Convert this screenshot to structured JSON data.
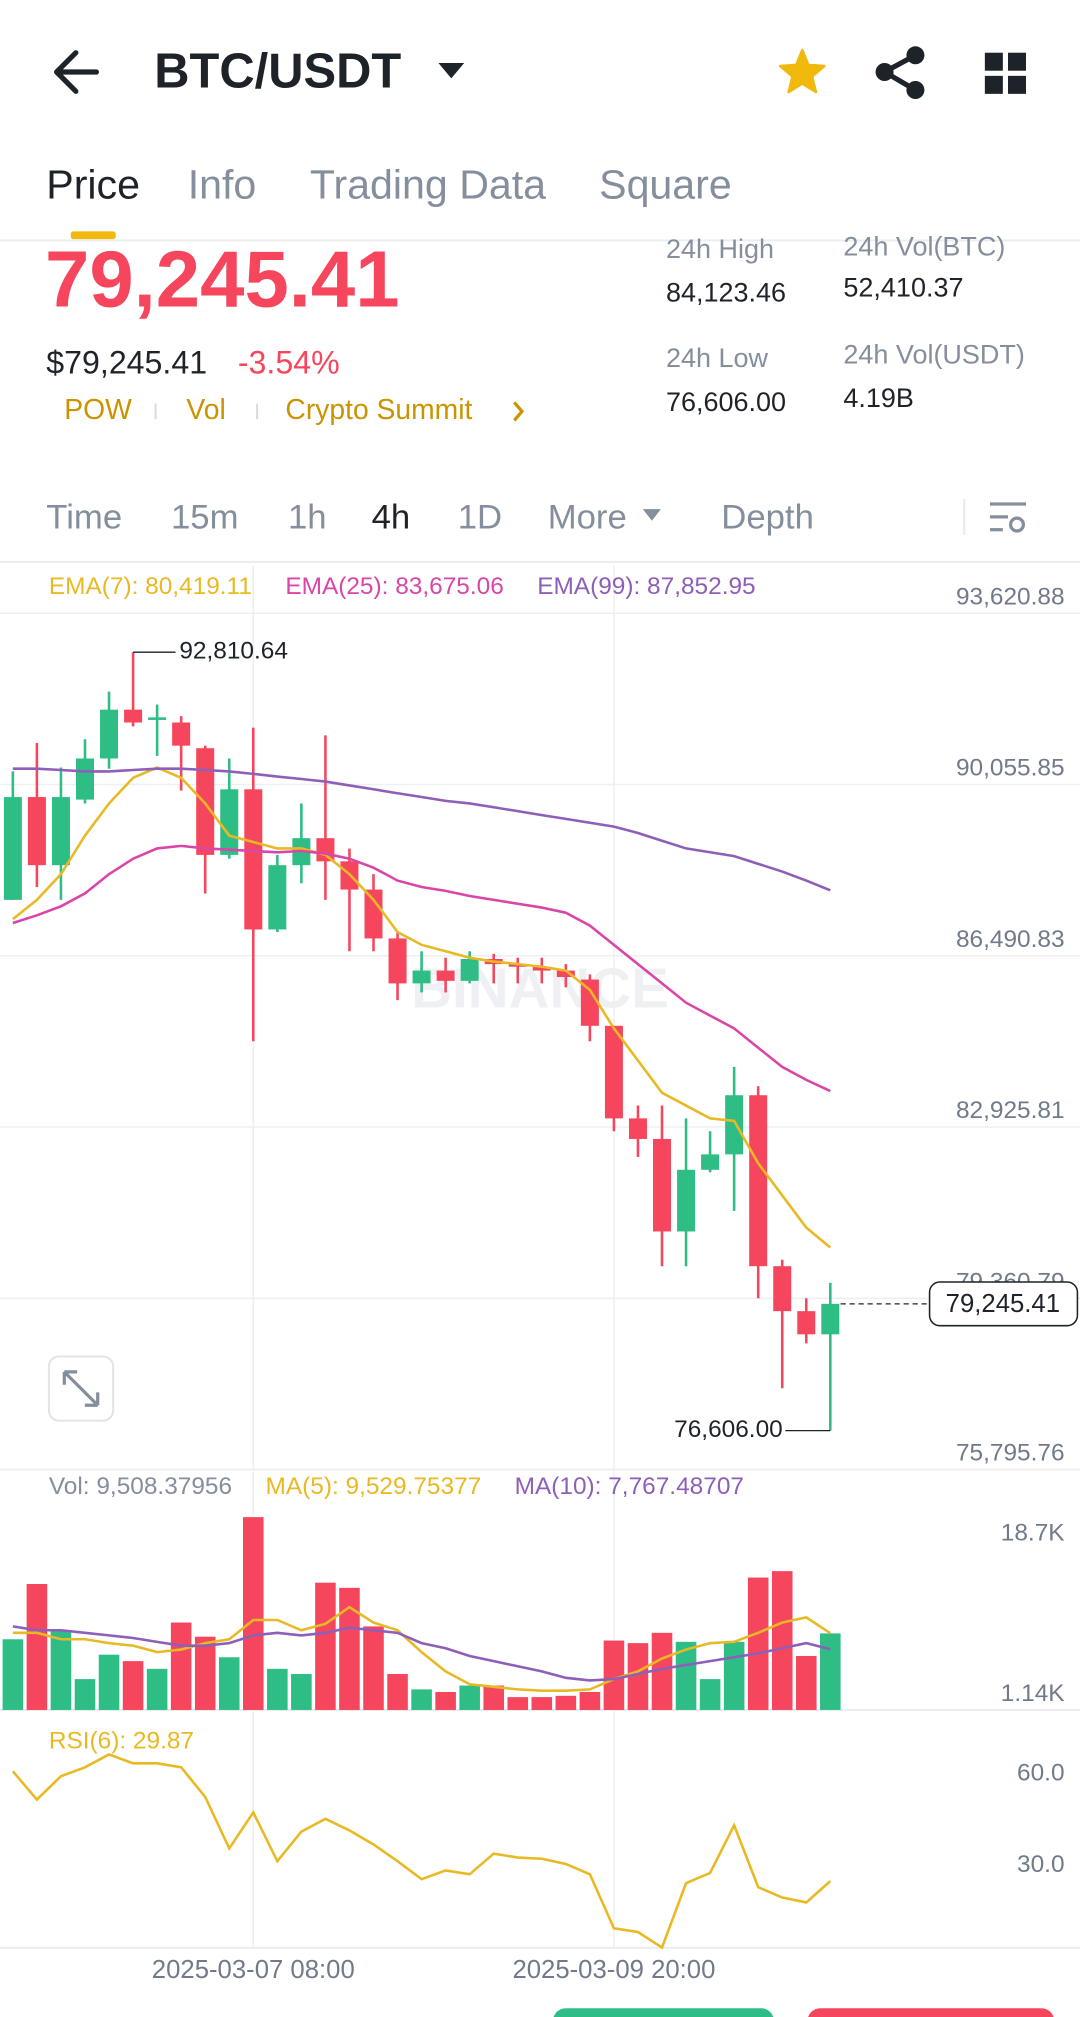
{
  "header": {
    "pair": "BTC/USDT"
  },
  "tabs": [
    "Price",
    "Info",
    "Trading Data",
    "Square"
  ],
  "price": {
    "last": "79,245.41",
    "usd": "$79,245.41",
    "change": "-3.54%",
    "tags": [
      "POW",
      "Vol",
      "Crypto Summit"
    ]
  },
  "stats": [
    {
      "label": "24h High",
      "value": "84,123.46"
    },
    {
      "label": "24h Vol(BTC)",
      "value": "52,410.37"
    },
    {
      "label": "24h Low",
      "value": "76,606.00"
    },
    {
      "label": "24h Vol(USDT)",
      "value": "4.19B"
    }
  ],
  "intervals": [
    "Time",
    "15m",
    "1h",
    "4h",
    "1D",
    "More",
    "Depth"
  ],
  "chart_data": [
    {
      "type": "candlestick",
      "watermark": "BINANCE",
      "up_color": "#2ebd85",
      "down_color": "#f6465d",
      "grid": true,
      "categories": [
        null,
        null,
        null,
        null,
        null,
        null,
        null,
        null,
        null,
        null,
        "2025-03-07 08:00",
        null,
        null,
        null,
        null,
        null,
        null,
        null,
        null,
        null,
        null,
        null,
        null,
        null,
        null,
        "2025-03-09 20:00",
        null,
        null,
        null,
        null,
        null,
        null,
        null,
        null,
        null
      ],
      "open": [
        87655,
        89795,
        88377,
        89742,
        90598,
        91614,
        91400,
        91347,
        90812,
        88591,
        89956,
        87039,
        88377,
        88939,
        88457,
        87869,
        86852,
        85916,
        86183,
        85969,
        86424,
        86317,
        86263,
        86183,
        85996,
        85033,
        83106,
        82678,
        80752,
        82036,
        82357,
        83588,
        80029,
        79093,
        78611
      ],
      "high": [
        90330,
        90919,
        90410,
        90999,
        91989,
        92810.64,
        91721,
        91481,
        90865,
        90598,
        91240,
        88591,
        89661,
        91079,
        88725,
        88190,
        86986,
        86584,
        86451,
        86584,
        86531,
        86451,
        86451,
        86317,
        86103,
        85033,
        83374,
        83374,
        83106,
        82839,
        84177,
        83775,
        80163,
        79361,
        79682
      ],
      "low": [
        87655,
        87922,
        87655,
        89661,
        90384,
        91267,
        90651,
        89929,
        87788,
        88511,
        84712,
        86986,
        88002,
        87655,
        86584,
        86584,
        85568,
        85728,
        85728,
        85916,
        85916,
        85916,
        85916,
        85835,
        84712,
        82839,
        82304,
        80029,
        80029,
        81983,
        81180,
        79361,
        77488,
        78424,
        76606.0
      ],
      "close": [
        89795,
        88377,
        89795,
        90598,
        91614,
        91347,
        91454,
        90865,
        88591,
        89956,
        87039,
        88377,
        88939,
        88457,
        87869,
        86852,
        85916,
        86183,
        85969,
        86424,
        86317,
        86263,
        86183,
        86049,
        85033,
        83106,
        82678,
        80752,
        82036,
        82357,
        83588,
        80029,
        79093,
        78611,
        79245.41
      ],
      "high_label": "92,810.64",
      "low_label": "76,606.00",
      "last_label": "79,245.41",
      "series": [
        {
          "name": "EMA(7): 80,419.11",
          "color": "#e8b923",
          "values": [
            87253,
            87655,
            88190,
            88992,
            89661,
            90196,
            90410,
            90196,
            89661,
            88992,
            88859,
            88725,
            88725,
            88591,
            88190,
            87655,
            86986,
            86718,
            86584,
            86451,
            86370,
            86317,
            86263,
            86183,
            85782,
            84979,
            84310,
            83641,
            83374,
            83106,
            83053,
            82170,
            81501,
            80832,
            80419.11
          ]
        },
        {
          "name": "EMA(25): 83,675.06",
          "color": "#d946a8",
          "values": [
            87173,
            87334,
            87521,
            87788,
            88190,
            88511,
            88725,
            88778,
            88725,
            88698,
            88671,
            88645,
            88671,
            88618,
            88511,
            88324,
            88056,
            87922,
            87842,
            87735,
            87655,
            87574,
            87494,
            87387,
            87120,
            86718,
            86317,
            85916,
            85514,
            85247,
            84979,
            84578,
            84177,
            83909,
            83675.06
          ]
        },
        {
          "name": "EMA(99): 87,852.95",
          "color": "#8e5fb8",
          "values": [
            90384,
            90384,
            90357,
            90330,
            90330,
            90357,
            90384,
            90384,
            90357,
            90330,
            90277,
            90223,
            90170,
            90116,
            90036,
            89956,
            89875,
            89795,
            89715,
            89661,
            89581,
            89501,
            89420,
            89340,
            89260,
            89180,
            89046,
            88885,
            88725,
            88645,
            88564,
            88404,
            88243,
            88056,
            87852.95
          ]
        }
      ],
      "ylim": [
        75795.76,
        94611
      ],
      "yticks": [
        {
          "value": 93620.88,
          "label": "93,620.88"
        },
        {
          "value": 90055.85,
          "label": "90,055.85"
        },
        {
          "value": 86490.83,
          "label": "86,490.83"
        },
        {
          "value": 82925.81,
          "label": "82,925.81"
        },
        {
          "value": 79360.79,
          "label": "79,360.79"
        },
        {
          "value": 75795.76,
          "label": "75,795.76"
        }
      ]
    },
    {
      "type": "bar",
      "grid": false,
      "series": [
        {
          "name": "Vol: 9,508.37956",
          "type": "bar",
          "values": [
            8868,
            14909,
            9851,
            4512,
            7182,
            6479,
            5636,
            10694,
            9149,
            6901,
            22215,
            5636,
            5074,
            15050,
            14488,
            10273,
            5074,
            3388,
            3107,
            3810,
            3810,
            2545,
            2545,
            2686,
            3107,
            8727,
            8446,
            9570,
            8587,
            4512,
            8587,
            15612,
            16314,
            7041,
            9508.37956
          ]
        },
        {
          "name": "MA(5): 9,529.75377",
          "type": "line",
          "color": "#e8b923",
          "values": [
            9570,
            9570,
            8868,
            8868,
            8446,
            8165,
            7463,
            7744,
            8446,
            8868,
            10975,
            10975,
            9851,
            10554,
            12380,
            10694,
            9851,
            7463,
            5355,
            3950,
            3669,
            3388,
            3248,
            3248,
            3388,
            4512,
            5355,
            6760,
            7744,
            8446,
            8587,
            9570,
            10694,
            11256,
            9529.75377
          ]
        },
        {
          "name": "MA(10): 7,767.48707",
          "type": "line",
          "color": "#8e5fb8",
          "values": [
            10273,
            9851,
            9851,
            9570,
            9289,
            9008,
            8587,
            8165,
            8165,
            8446,
            9289,
            9570,
            9289,
            9570,
            10132,
            9851,
            9570,
            8446,
            7884,
            7041,
            6479,
            5917,
            5355,
            4653,
            4372,
            4512,
            5074,
            5636,
            6058,
            6479,
            6901,
            7322,
            7884,
            8446,
            7767.48707
          ]
        }
      ],
      "ylim": [
        1140,
        27414
      ],
      "yticks": [
        {
          "value": 18700,
          "label": "18.7K"
        },
        {
          "value": 1140,
          "label": "1.14K"
        }
      ]
    },
    {
      "type": "line",
      "grid": false,
      "series": [
        {
          "name": "RSI(6): 29.87",
          "color": "#e8b923",
          "values": [
            65.9,
            56.6,
            64.3,
            67.2,
            71.4,
            68.5,
            68.5,
            67.2,
            57.5,
            40.6,
            52.4,
            36.4,
            46.1,
            50.3,
            46.5,
            41.9,
            36.4,
            30.5,
            33.4,
            32.1,
            38.9,
            37.6,
            37.2,
            35.5,
            32.1,
            14.4,
            13.2,
            8.1,
            29.2,
            32.6,
            48.2,
            27.9,
            24.5,
            22.9,
            29.87
          ]
        }
      ],
      "ylim": [
        8,
        86
      ],
      "yticks": [
        {
          "value": 60,
          "label": "60.0"
        },
        {
          "value": 30,
          "label": "30.0"
        }
      ]
    }
  ]
}
